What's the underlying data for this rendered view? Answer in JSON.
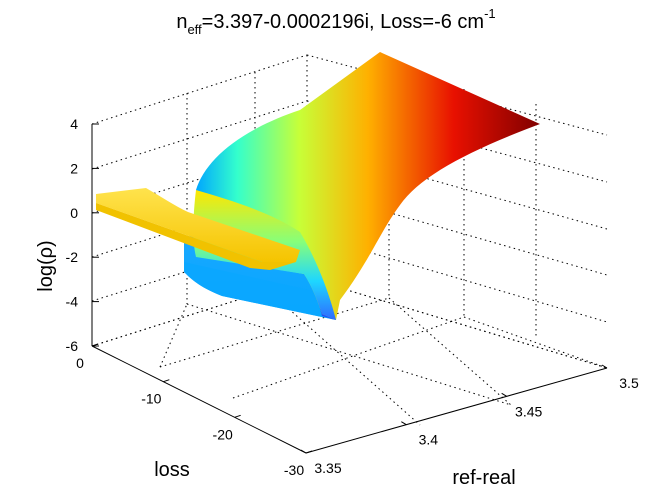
{
  "chart_data": {
    "type": "surface",
    "title": {
      "prefix": "n",
      "sub": "eff",
      "mid": "=3.397-0.0002196i, Loss=-6 cm",
      "sup": "-1"
    },
    "xlabel": "ref-real",
    "ylabel": "loss",
    "zlabel": "log(ρ)",
    "xlim": [
      3.35,
      3.5
    ],
    "ylim": [
      -30,
      0
    ],
    "zlim": [
      -6,
      4
    ],
    "x_ticks": [
      "3.35",
      "3.4",
      "3.45",
      "3.5"
    ],
    "y_ticks": [
      "0",
      "-10",
      "-20",
      "-30"
    ],
    "z_ticks": [
      "-6",
      "-4",
      "-2",
      "0",
      "2",
      "4"
    ],
    "grid": true,
    "colormap": "jet",
    "surface_rows": [
      {
        "x": 3.4,
        "log_rho": [
          -3.0,
          -2.0,
          -0.4
        ]
      },
      {
        "x": 3.42,
        "log_rho": [
          -0.2,
          0.4,
          0.9
        ]
      },
      {
        "x": 3.45,
        "log_rho": [
          1.6,
          2.0,
          2.6
        ]
      },
      {
        "x": 3.5,
        "log_rho": [
          3.3,
          3.9,
          4.7
        ]
      }
    ],
    "ridge": {
      "x": 3.35,
      "log_rho": 0.7
    }
  }
}
